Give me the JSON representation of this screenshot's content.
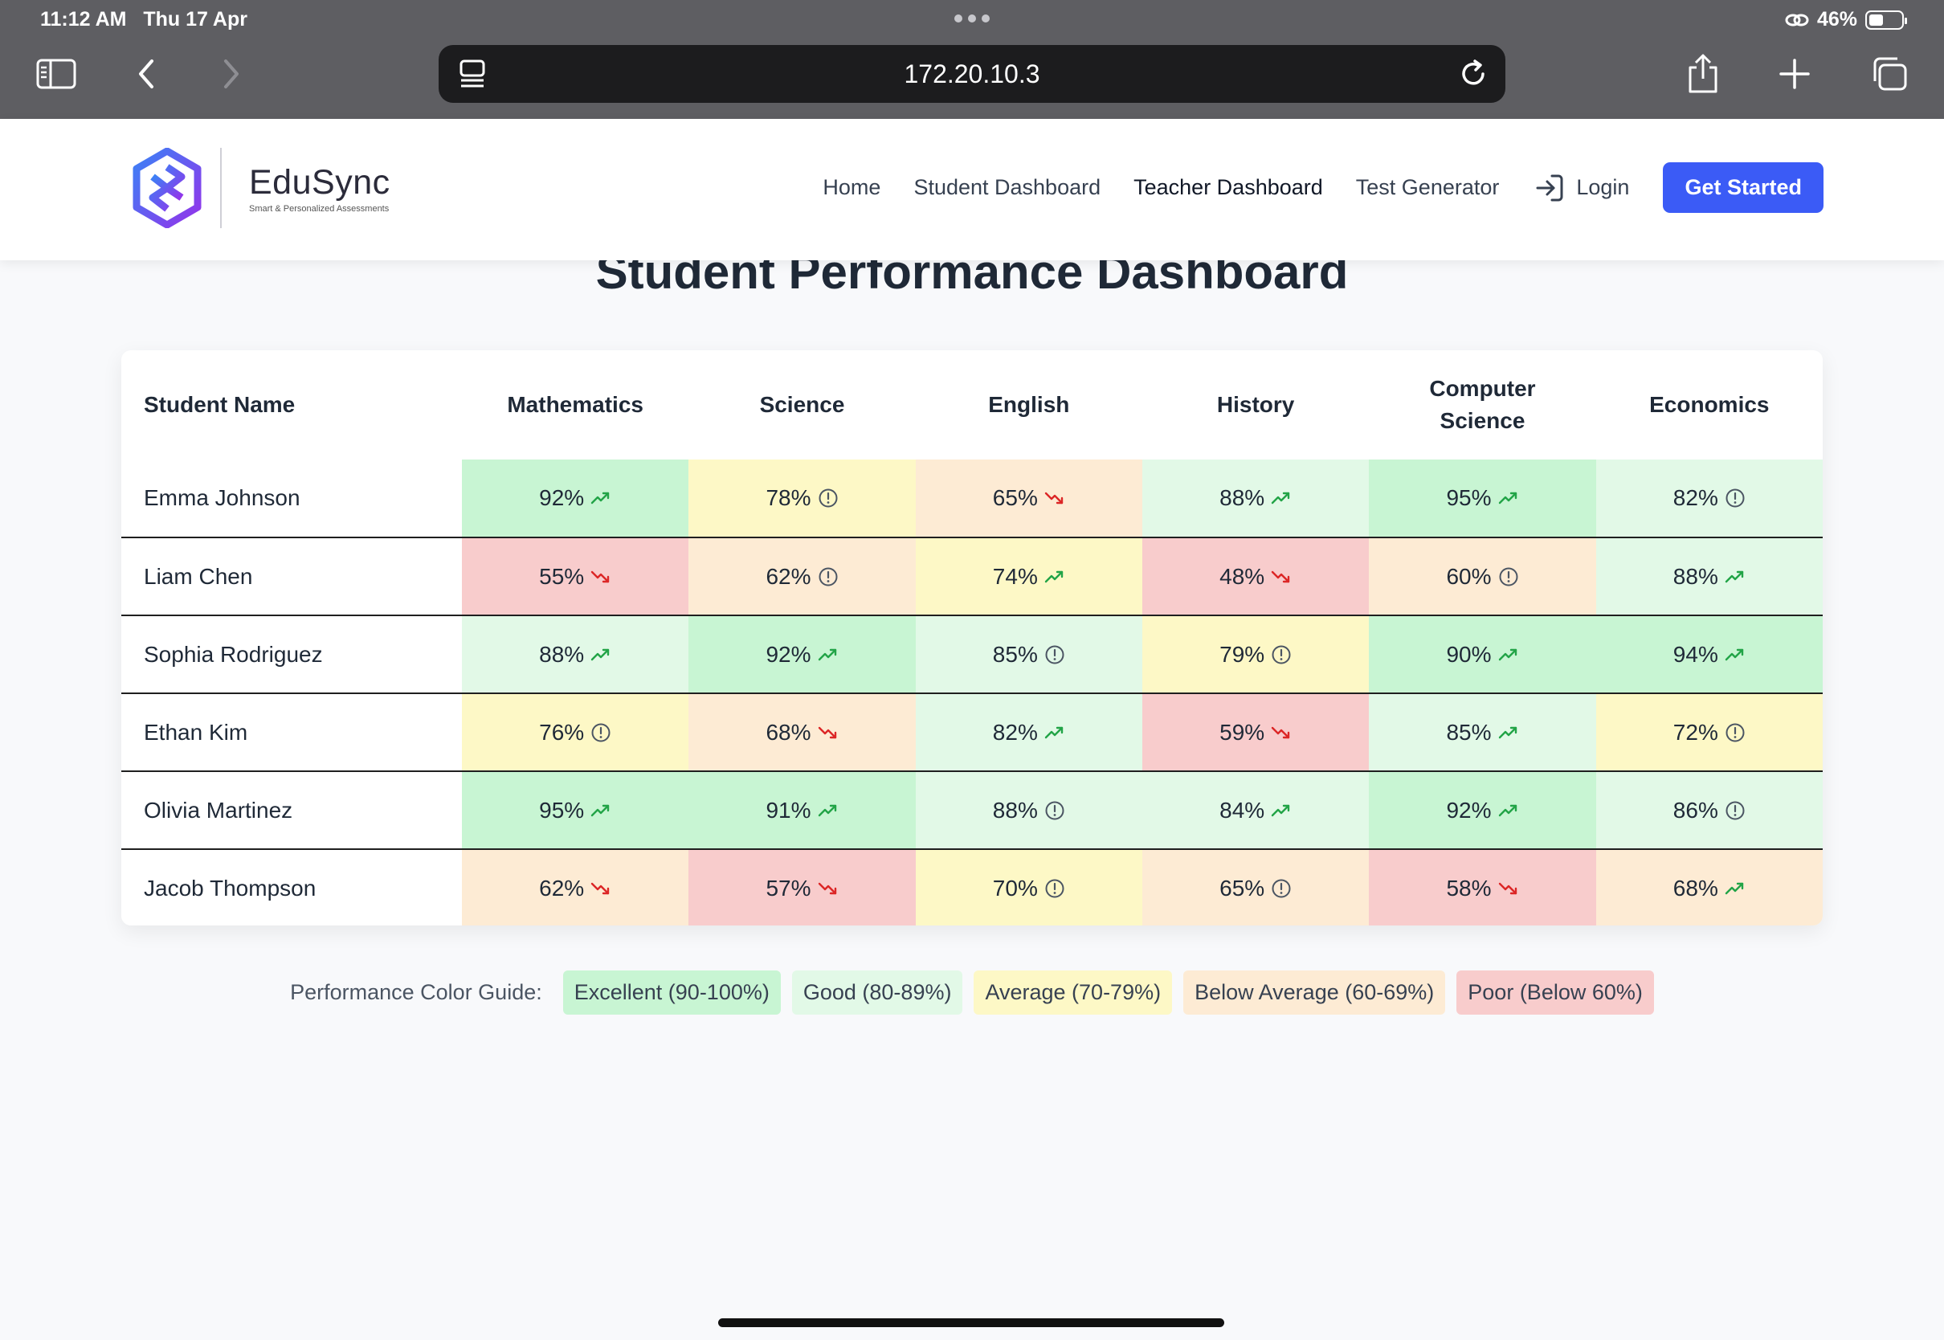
{
  "status_bar": {
    "time": "11:12 AM",
    "date": "Thu 17 Apr",
    "battery": "46%",
    "battery_level": 0.46
  },
  "browser": {
    "url": "172.20.10.3"
  },
  "header": {
    "brand_name": "EduSync",
    "brand_tagline": "Smart & Personalized Assessments",
    "nav": [
      "Home",
      "Student Dashboard",
      "Teacher Dashboard",
      "Test Generator"
    ],
    "login_label": "Login",
    "cta_label": "Get Started"
  },
  "page_title": "Student Performance Dashboard",
  "table": {
    "first_header": "Student Name",
    "subjects": [
      "Mathematics",
      "Science",
      "English",
      "History",
      "Computer Science",
      "Economics"
    ],
    "rows": [
      {
        "name": "Emma Johnson",
        "cells": [
          {
            "value": "92%",
            "level": "excellent",
            "trend": "up"
          },
          {
            "value": "78%",
            "level": "average",
            "trend": "stable"
          },
          {
            "value": "65%",
            "level": "below",
            "trend": "down"
          },
          {
            "value": "88%",
            "level": "good",
            "trend": "up"
          },
          {
            "value": "95%",
            "level": "excellent",
            "trend": "up"
          },
          {
            "value": "82%",
            "level": "good",
            "trend": "stable"
          }
        ]
      },
      {
        "name": "Liam Chen",
        "cells": [
          {
            "value": "55%",
            "level": "poor",
            "trend": "down"
          },
          {
            "value": "62%",
            "level": "below",
            "trend": "stable"
          },
          {
            "value": "74%",
            "level": "average",
            "trend": "up"
          },
          {
            "value": "48%",
            "level": "poor",
            "trend": "down"
          },
          {
            "value": "60%",
            "level": "below",
            "trend": "stable"
          },
          {
            "value": "88%",
            "level": "good",
            "trend": "up"
          }
        ]
      },
      {
        "name": "Sophia Rodriguez",
        "cells": [
          {
            "value": "88%",
            "level": "good",
            "trend": "up"
          },
          {
            "value": "92%",
            "level": "excellent",
            "trend": "up"
          },
          {
            "value": "85%",
            "level": "good",
            "trend": "stable"
          },
          {
            "value": "79%",
            "level": "average",
            "trend": "stable"
          },
          {
            "value": "90%",
            "level": "excellent",
            "trend": "up"
          },
          {
            "value": "94%",
            "level": "excellent",
            "trend": "up"
          }
        ]
      },
      {
        "name": "Ethan Kim",
        "cells": [
          {
            "value": "76%",
            "level": "average",
            "trend": "stable"
          },
          {
            "value": "68%",
            "level": "below",
            "trend": "down"
          },
          {
            "value": "82%",
            "level": "good",
            "trend": "up"
          },
          {
            "value": "59%",
            "level": "poor",
            "trend": "down"
          },
          {
            "value": "85%",
            "level": "good",
            "trend": "up"
          },
          {
            "value": "72%",
            "level": "average",
            "trend": "stable"
          }
        ]
      },
      {
        "name": "Olivia Martinez",
        "cells": [
          {
            "value": "95%",
            "level": "excellent",
            "trend": "up"
          },
          {
            "value": "91%",
            "level": "excellent",
            "trend": "up"
          },
          {
            "value": "88%",
            "level": "good",
            "trend": "stable"
          },
          {
            "value": "84%",
            "level": "good",
            "trend": "up"
          },
          {
            "value": "92%",
            "level": "excellent",
            "trend": "up"
          },
          {
            "value": "86%",
            "level": "good",
            "trend": "stable"
          }
        ]
      },
      {
        "name": "Jacob Thompson",
        "cells": [
          {
            "value": "62%",
            "level": "below",
            "trend": "down"
          },
          {
            "value": "57%",
            "level": "poor",
            "trend": "down"
          },
          {
            "value": "70%",
            "level": "average",
            "trend": "stable"
          },
          {
            "value": "65%",
            "level": "below",
            "trend": "stable"
          },
          {
            "value": "58%",
            "level": "poor",
            "trend": "down"
          },
          {
            "value": "68%",
            "level": "below",
            "trend": "up"
          }
        ]
      }
    ]
  },
  "legend": {
    "label": "Performance Color Guide:",
    "items": [
      {
        "label": "Excellent (90-100%)",
        "level": "excellent"
      },
      {
        "label": "Good (80-89%)",
        "level": "good"
      },
      {
        "label": "Average (70-79%)",
        "level": "average"
      },
      {
        "label": "Below Average (60-69%)",
        "level": "below"
      },
      {
        "label": "Poor (Below 60%)",
        "level": "poor"
      }
    ]
  },
  "colors": {
    "excellent": "#c8f5d3",
    "good": "#e2f9e7",
    "average": "#fdf8c6",
    "below": "#fdebd4",
    "poor": "#f8cccc",
    "trend_up": "#22a447",
    "trend_down": "#dc2626",
    "trend_stable": "#4b5563",
    "accent": "#3b5bf6"
  },
  "icons": {
    "trend_up": "trending-up-icon",
    "trend_down": "trending-down-icon",
    "trend_stable": "alert-circle-icon"
  }
}
